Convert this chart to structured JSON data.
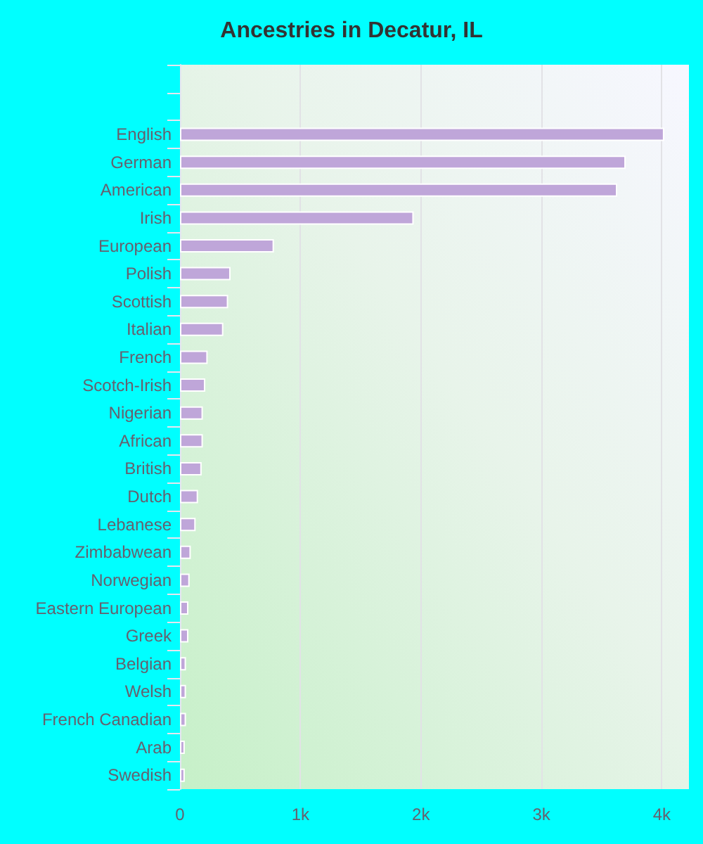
{
  "chart_data": {
    "type": "bar",
    "orientation": "horizontal",
    "title": "Ancestries in Decatur, IL",
    "categories": [
      null,
      null,
      "English",
      "German",
      "American",
      "Irish",
      "European",
      "Polish",
      "Scottish",
      "Italian",
      "French",
      "Scotch-Irish",
      "Nigerian",
      "African",
      "British",
      "Dutch",
      "Lebanese",
      "Zimbabwean",
      "Norwegian",
      "Eastern European",
      "Greek",
      "Belgian",
      "Welsh",
      "French Canadian",
      "Arab",
      "Swedish"
    ],
    "values": [
      null,
      null,
      4020,
      3700,
      3630,
      1940,
      780,
      420,
      400,
      360,
      230,
      210,
      190,
      190,
      180,
      150,
      130,
      90,
      80,
      70,
      70,
      50,
      50,
      50,
      40,
      40
    ],
    "color": "#bfa6d9",
    "xlim": [
      0,
      4225
    ],
    "xticks": [
      0,
      {
        "value": 1000,
        "label": "1k"
      },
      {
        "value": 2000,
        "label": "2k"
      },
      {
        "value": 3000,
        "label": "3k"
      },
      {
        "value": 4000,
        "label": "4k"
      }
    ],
    "grid": "x"
  }
}
